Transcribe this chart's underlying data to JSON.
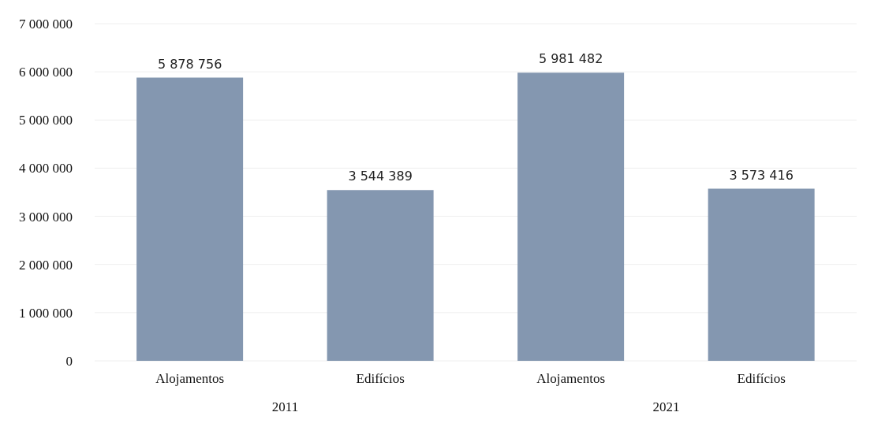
{
  "chart_data": {
    "type": "bar",
    "categories": [
      "Alojamentos",
      "Edifícios",
      "Alojamentos",
      "Edifícios"
    ],
    "values": [
      5878756,
      3544389,
      5981482,
      3573416
    ],
    "value_labels": [
      "5 878 756",
      "3 544 389",
      "5 981 482",
      "3 573 416"
    ],
    "color": "#8497b0",
    "ylim": [
      0,
      7000000
    ],
    "yticks": [
      {
        "value": 0,
        "label": "0"
      },
      {
        "value": 1000000,
        "label": "1 000 000"
      },
      {
        "value": 2000000,
        "label": "2 000 000"
      },
      {
        "value": 3000000,
        "label": "3 000 000"
      },
      {
        "value": 4000000,
        "label": "4 000 000"
      },
      {
        "value": 5000000,
        "label": "5 000 000"
      },
      {
        "value": 6000000,
        "label": "6 000 000"
      },
      {
        "value": 7000000,
        "label": "7 000 000"
      }
    ],
    "grid": "y",
    "annotations": [
      "2011",
      "2021"
    ]
  }
}
